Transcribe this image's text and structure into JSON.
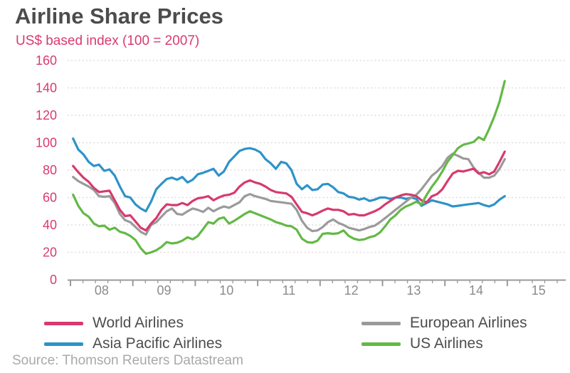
{
  "title": "Airline Share Prices",
  "subtitle": "US$ based index (100 = 2007)",
  "source": "Source: Thomson Reuters Datastream",
  "colors": {
    "title_text": "#4c4c4c",
    "subtitle_text": "#d93a6e",
    "axis_tick_text": "#8b8b8b",
    "y_tick_text": "#d93a6e",
    "legend_text": "#4d4d4d",
    "source_text": "#a9a9a9",
    "gridline": "#e2d6d9",
    "axis_line": "#9a9a9a"
  },
  "chart_data": {
    "type": "line",
    "title": "Airline Share Prices",
    "subtitle": "US$ based index (100 = 2007)",
    "x_unit": "month",
    "x_start": "2008-01",
    "x_end": "2014-12",
    "x_tick_labels": [
      "08",
      "09",
      "10",
      "11",
      "12",
      "13",
      "14",
      "15"
    ],
    "y_ticks": [
      0,
      20,
      40,
      60,
      80,
      100,
      120,
      140,
      160
    ],
    "ylim": [
      0,
      160
    ],
    "grid": "horizontal-dotted",
    "legend_position": "bottom",
    "series": [
      {
        "name": "World Airlines",
        "color": "#d63a6e",
        "values": [
          83,
          78.5,
          74.5,
          71.5,
          67,
          64,
          64.5,
          65,
          58,
          51,
          46.5,
          47,
          42.5,
          38,
          36,
          41,
          45,
          51,
          55,
          54.5,
          54.5,
          56,
          54.5,
          57.5,
          59.5,
          60,
          61,
          58,
          60,
          61.5,
          62,
          63.5,
          68,
          71,
          72.5,
          71,
          70,
          68,
          65.5,
          64,
          63.5,
          63,
          60.5,
          55,
          49.5,
          48.5,
          47,
          48.5,
          50.5,
          52,
          51,
          51,
          50,
          47.5,
          48,
          47,
          47,
          48.5,
          50,
          52,
          55,
          57.5,
          60,
          61.5,
          62.5,
          62,
          61,
          58,
          56.5,
          61,
          62.5,
          66,
          72,
          77.5,
          79.5,
          79,
          80,
          81,
          77.5,
          78.5,
          77,
          79,
          86,
          93.5
        ]
      },
      {
        "name": "Asia Pacific Airlines",
        "color": "#2d93c9",
        "values": [
          103,
          95,
          91.5,
          86,
          83,
          84,
          79.5,
          80.5,
          76,
          68,
          61,
          60,
          55,
          52,
          50,
          57,
          66,
          70,
          73.5,
          74.5,
          73,
          75,
          71,
          73,
          77,
          78,
          79.5,
          81,
          76,
          79,
          86,
          90,
          94,
          95.5,
          96,
          95,
          93,
          88,
          85,
          81,
          86,
          85,
          80,
          70,
          66,
          69,
          65.5,
          66,
          69.5,
          70,
          67.5,
          64,
          63,
          60.5,
          60,
          58.5,
          59.5,
          57.5,
          58.5,
          60,
          60,
          59,
          60,
          60,
          59,
          60,
          59,
          54,
          56,
          58,
          57,
          56,
          55,
          53.5,
          54,
          54.5,
          55,
          55.5,
          56,
          54.5,
          53.5,
          55,
          58.5,
          61
        ]
      },
      {
        "name": "European Airlines",
        "color": "#9a9a9a",
        "values": [
          75,
          72,
          70,
          68,
          65.5,
          61,
          60.5,
          61,
          56,
          48,
          43.5,
          42,
          38.5,
          35,
          33,
          40,
          42,
          46,
          50,
          52,
          48,
          47.5,
          50,
          52,
          51,
          49.5,
          52.5,
          50,
          52,
          53.5,
          52.5,
          54.5,
          56.5,
          61,
          62.5,
          61,
          60,
          59,
          57.5,
          57,
          56.5,
          56,
          55.5,
          51,
          43,
          38,
          35.5,
          36,
          38.5,
          42,
          44,
          41.5,
          40,
          38,
          37,
          36,
          37,
          38.5,
          39.5,
          42,
          45,
          48,
          51,
          54,
          57,
          60,
          62,
          66,
          71,
          76,
          79,
          83,
          89,
          92,
          90.5,
          88.5,
          88,
          82,
          78,
          74.5,
          74.5,
          76,
          81,
          88
        ]
      },
      {
        "name": "US Airlines",
        "color": "#63b945",
        "values": [
          62,
          54,
          48.5,
          46,
          41,
          39,
          39.5,
          36.5,
          38,
          35,
          34,
          32,
          29,
          23,
          19,
          20,
          21.5,
          24,
          27.5,
          26.5,
          27,
          28.5,
          31,
          29.5,
          32,
          37,
          42,
          41,
          44.5,
          45.5,
          41,
          43,
          45.5,
          48,
          50,
          48.5,
          47,
          45.5,
          44,
          42,
          41,
          39.5,
          39,
          36.5,
          30,
          27.5,
          27,
          28.5,
          33.5,
          34,
          33.5,
          34,
          36,
          32,
          30,
          29,
          29.5,
          31,
          32,
          34.5,
          39,
          44,
          47,
          51,
          53.5,
          55,
          57,
          55,
          62,
          68,
          73,
          79,
          86,
          91,
          96,
          98.5,
          99.5,
          100.5,
          104,
          102,
          110,
          119,
          130,
          145
        ]
      }
    ]
  }
}
